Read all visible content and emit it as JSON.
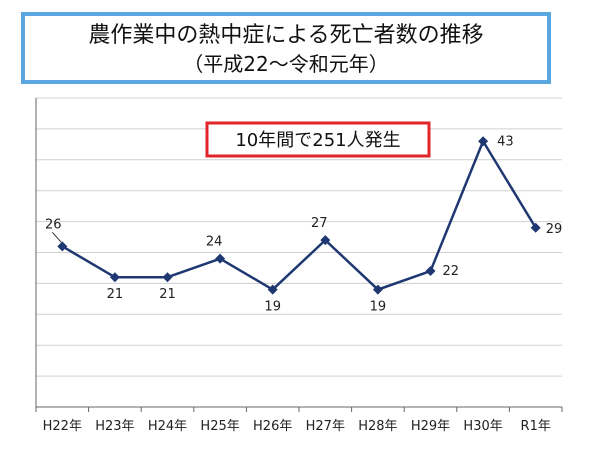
{
  "title": {
    "line1": "農作業中の熱中症による死亡者数の推移",
    "line2": "（平成22～令和元年）"
  },
  "annotation": "10年間で251人発生",
  "colors": {
    "line": "#1f3872",
    "title_border": "#5aa7e0",
    "annotation_border": "#e0262a",
    "grid": "#d0d0d0"
  },
  "chart_data": {
    "type": "line",
    "categories": [
      "H22年",
      "H23年",
      "H24年",
      "H25年",
      "H26年",
      "H27年",
      "H28年",
      "H29年",
      "H30年",
      "R1年"
    ],
    "values": [
      26,
      21,
      21,
      24,
      19,
      27,
      19,
      22,
      43,
      29
    ],
    "ylim": [
      0,
      50
    ],
    "grid": true,
    "data_labels": true
  }
}
